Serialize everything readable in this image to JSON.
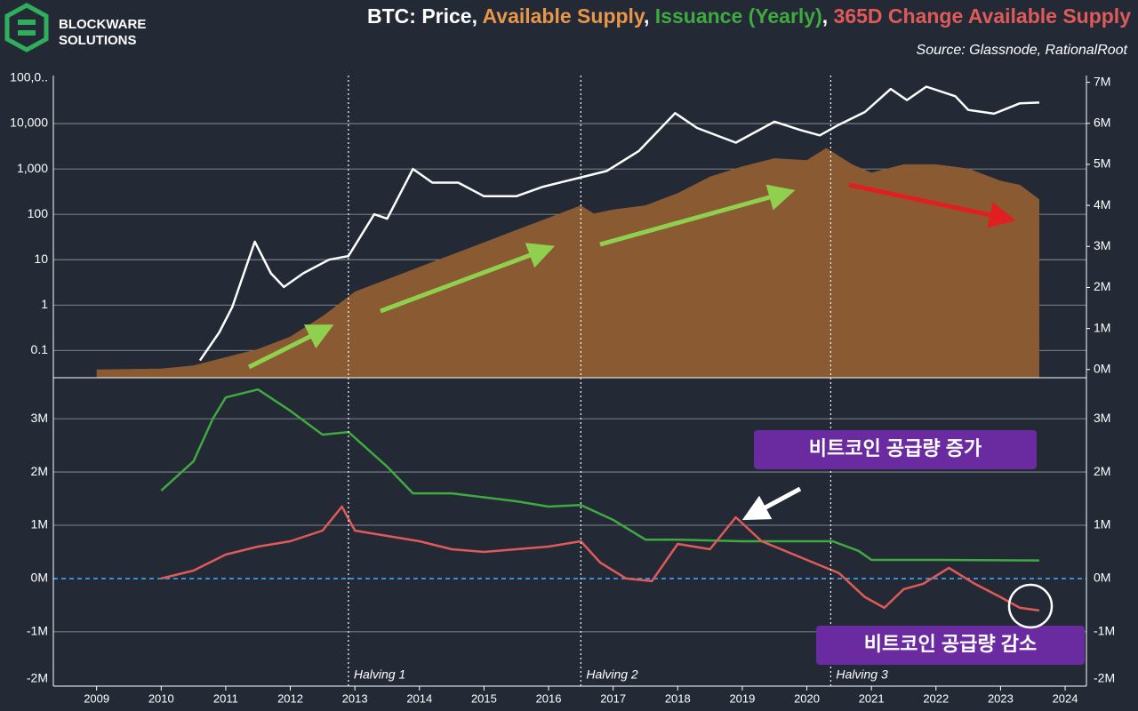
{
  "header": {
    "logo": [
      "BLOCKWARE",
      "SOLUTIONS"
    ],
    "title_parts": [
      {
        "text": "BTC: Price, ",
        "color": "#ffffff"
      },
      {
        "text": "Available Supply",
        "color": "#e8964a"
      },
      {
        "text": ", ",
        "color": "#ffffff"
      },
      {
        "text": "Issuance (Yearly)",
        "color": "#3faa3f"
      },
      {
        "text": ", ",
        "color": "#ffffff"
      },
      {
        "text": "365D Change Available Supply",
        "color": "#e05a5a"
      }
    ],
    "source": "Source: Glassnode, RationalRoot"
  },
  "chart_data": [
    {
      "type": "line",
      "log_y": true,
      "xlim": [
        2008.33,
        2024.33
      ],
      "ylim": [
        0.025,
        100000
      ],
      "yticks": [
        {
          "value": 100000,
          "label": "100,0.."
        },
        {
          "value": 10000,
          "label": "10,000"
        },
        {
          "value": 1000,
          "label": "1,000"
        },
        100,
        10,
        1,
        0.1
      ],
      "y2lim": [
        -200000,
        7100000
      ],
      "y2ticks": [
        {
          "value": 0,
          "label": "0M"
        },
        {
          "value": 1000000,
          "label": "1M"
        },
        {
          "value": 2000000,
          "label": "2M"
        },
        {
          "value": 3000000,
          "label": "3M"
        },
        {
          "value": 4000000,
          "label": "4M"
        },
        {
          "value": 5000000,
          "label": "5M"
        },
        {
          "value": 6000000,
          "label": "6M"
        },
        {
          "value": 7000000,
          "label": "7M"
        }
      ],
      "grid": true,
      "series": [
        {
          "style": "area",
          "axis": "y2",
          "color": "#8a5a32",
          "x": [
            2009.0,
            2010.0,
            2010.5,
            2011.0,
            2011.5,
            2012.0,
            2012.5,
            2013.0,
            2013.5,
            2014.0,
            2014.5,
            2015.0,
            2015.5,
            2016.0,
            2016.5,
            2016.7,
            2017.0,
            2017.5,
            2018.0,
            2018.5,
            2019.0,
            2019.5,
            2020.0,
            2020.3,
            2020.7,
            2021.0,
            2021.5,
            2022.0,
            2022.5,
            2023.0,
            2023.3,
            2023.6
          ],
          "values": [
            0,
            20000,
            100000,
            300000,
            500000,
            800000,
            1300000,
            1900000,
            2200000,
            2500000,
            2800000,
            3100000,
            3400000,
            3700000,
            4000000,
            3800000,
            3900000,
            4000000,
            4300000,
            4700000,
            4950000,
            5150000,
            5100000,
            5400000,
            5000000,
            4800000,
            5000000,
            5000000,
            4900000,
            4600000,
            4500000,
            4150000
          ]
        },
        {
          "style": "line",
          "axis": "y",
          "color": "#ffffff",
          "x": [
            2010.6,
            2010.9,
            2011.1,
            2011.45,
            2011.7,
            2011.9,
            2012.2,
            2012.6,
            2012.9,
            2013.3,
            2013.5,
            2013.9,
            2014.2,
            2014.6,
            2015.0,
            2015.5,
            2015.9,
            2016.5,
            2016.9,
            2017.4,
            2017.96,
            2018.3,
            2018.9,
            2019.5,
            2019.9,
            2020.2,
            2020.5,
            2020.9,
            2021.3,
            2021.55,
            2021.85,
            2022.3,
            2022.5,
            2022.9,
            2023.3,
            2023.6
          ],
          "values": [
            0.06,
            0.25,
            0.9,
            25,
            5,
            2.5,
            5,
            10,
            12,
            100,
            80,
            1000,
            500,
            500,
            250,
            250,
            400,
            650,
            900,
            2500,
            17000,
            8000,
            3800,
            11000,
            7200,
            5500,
            9500,
            18000,
            58000,
            33000,
            65000,
            40000,
            20000,
            16500,
            28000,
            29000
          ]
        }
      ]
    },
    {
      "type": "line",
      "xlim": [
        2008.33,
        2024.33
      ],
      "xticks": [
        2009,
        2010,
        2011,
        2012,
        2013,
        2014,
        2015,
        2016,
        2017,
        2018,
        2019,
        2020,
        2021,
        2022,
        2023,
        2024
      ],
      "ylim": [
        -2020000,
        3720000
      ],
      "yticks": [
        {
          "value": 3000000,
          "label": "3M"
        },
        {
          "value": 2000000,
          "label": "2M"
        },
        {
          "value": 1000000,
          "label": "1M"
        },
        {
          "value": 0,
          "label": "0M"
        },
        {
          "value": -1000000,
          "label": "-1M"
        },
        {
          "value": -2000000,
          "label": "-2M"
        }
      ],
      "grid": true,
      "zero_line_color": "#3a8fd0",
      "halvings": [
        {
          "x": 2012.9,
          "label": "Halving 1"
        },
        {
          "x": 2016.5,
          "label": "Halving 2"
        },
        {
          "x": 2020.37,
          "label": "Halving 3"
        }
      ],
      "annotations": [
        {
          "text": "비트코인 공급량 증가",
          "color": "#6a2aa0"
        },
        {
          "text": "비트코인 공급량 감소",
          "color": "#6a2aa0"
        }
      ],
      "series": [
        {
          "style": "line",
          "color": "#3faa3f",
          "x": [
            2010.0,
            2010.5,
            2010.8,
            2011.0,
            2011.5,
            2012.0,
            2012.5,
            2012.9,
            2013.5,
            2013.9,
            2014.5,
            2015.5,
            2016.0,
            2016.5,
            2017.0,
            2017.5,
            2018.0,
            2019.0,
            2020.0,
            2020.4,
            2020.8,
            2021.0,
            2022.0,
            2023.6
          ],
          "values": [
            1650000,
            2200000,
            3000000,
            3400000,
            3550000,
            3150000,
            2700000,
            2750000,
            2100000,
            1600000,
            1600000,
            1450000,
            1350000,
            1380000,
            1100000,
            730000,
            730000,
            700000,
            700000,
            700000,
            520000,
            350000,
            350000,
            340000
          ]
        },
        {
          "style": "line",
          "color": "#e05a5a",
          "x": [
            2010.0,
            2010.5,
            2011.0,
            2011.5,
            2012.0,
            2012.5,
            2012.8,
            2013.0,
            2013.5,
            2014.0,
            2014.5,
            2015.0,
            2015.5,
            2016.0,
            2016.5,
            2016.8,
            2017.2,
            2017.6,
            2018.0,
            2018.5,
            2018.9,
            2019.3,
            2019.8,
            2020.2,
            2020.5,
            2020.9,
            2021.2,
            2021.5,
            2021.8,
            2022.2,
            2022.6,
            2023.0,
            2023.3,
            2023.6
          ],
          "values": [
            0,
            150000,
            450000,
            600000,
            700000,
            900000,
            1350000,
            900000,
            800000,
            700000,
            550000,
            500000,
            550000,
            600000,
            700000,
            300000,
            0,
            -50000,
            650000,
            550000,
            1150000,
            700000,
            450000,
            250000,
            100000,
            -350000,
            -550000,
            -200000,
            -100000,
            200000,
            -100000,
            -350000,
            -550000,
            -600000
          ]
        }
      ]
    }
  ]
}
